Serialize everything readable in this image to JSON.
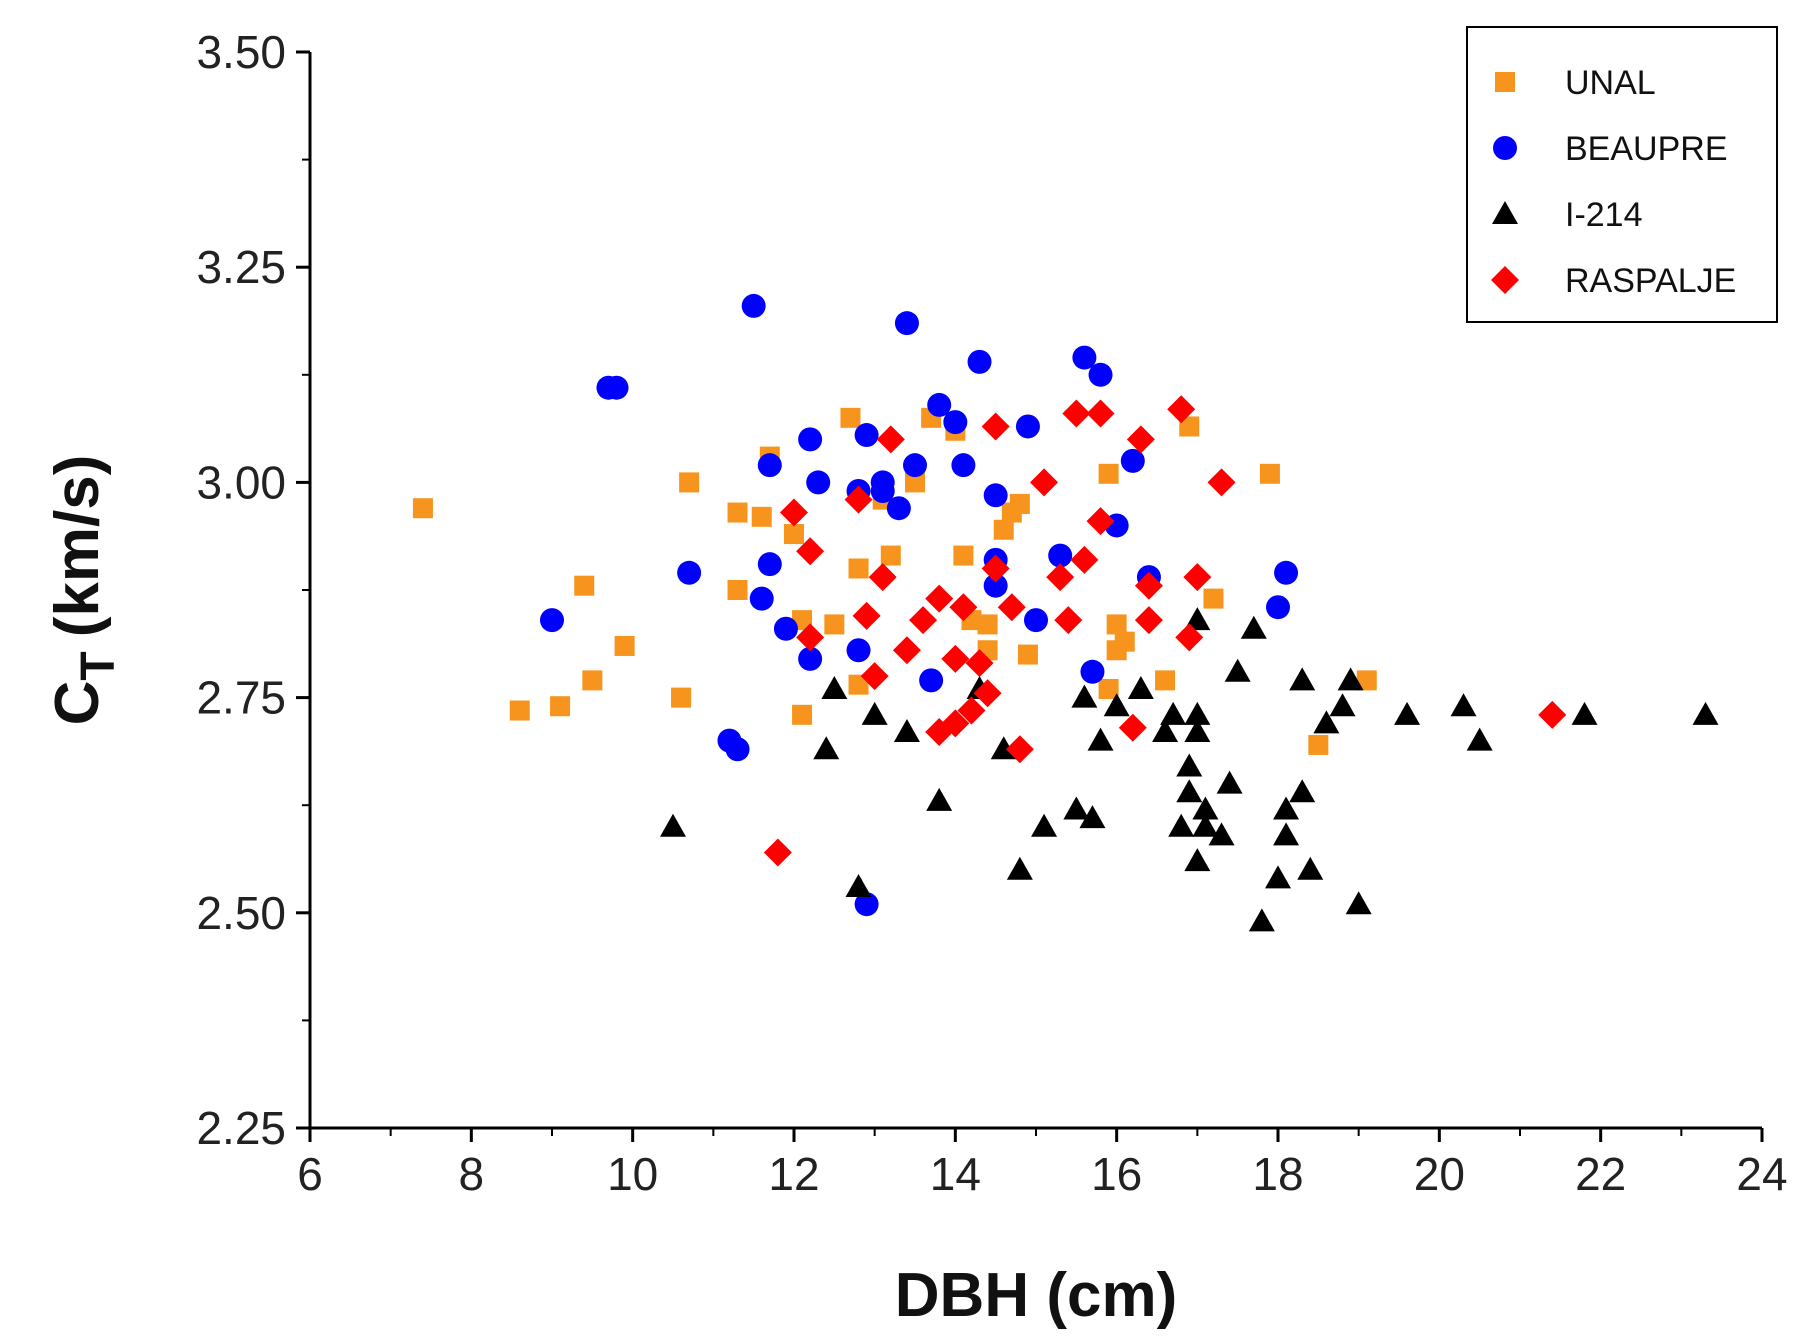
{
  "chart_data": {
    "type": "scatter",
    "title": "",
    "xlabel": "DBH (cm)",
    "ylabel_main": "C",
    "ylabel_sub": "T",
    "ylabel_unit": "(km/s)",
    "xlim": [
      6,
      24
    ],
    "ylim": [
      2.25,
      3.5
    ],
    "xticks": [
      6,
      8,
      10,
      12,
      14,
      16,
      18,
      20,
      22,
      24
    ],
    "xtick_labels": [
      "6",
      "8",
      "10",
      "12",
      "14",
      "16",
      "18",
      "20",
      "22",
      "24"
    ],
    "yticks": [
      2.25,
      2.5,
      2.75,
      3.0,
      3.25,
      3.5
    ],
    "ytick_labels": [
      "2.25",
      "2.50",
      "2.75",
      "3.00",
      "3.25",
      "3.50"
    ],
    "grid": false,
    "legend_position": "top-right",
    "series": [
      {
        "name": "UNAL",
        "marker": "square",
        "color": "#F7941D",
        "points": [
          [
            7.4,
            2.97
          ],
          [
            8.6,
            2.735
          ],
          [
            9.1,
            2.74
          ],
          [
            9.4,
            2.88
          ],
          [
            9.5,
            2.77
          ],
          [
            9.9,
            2.81
          ],
          [
            10.6,
            2.75
          ],
          [
            10.7,
            3.0
          ],
          [
            11.3,
            2.965
          ],
          [
            11.3,
            2.875
          ],
          [
            11.6,
            2.96
          ],
          [
            11.7,
            3.03
          ],
          [
            12.0,
            2.94
          ],
          [
            12.1,
            2.84
          ],
          [
            12.1,
            2.73
          ],
          [
            12.5,
            2.835
          ],
          [
            12.7,
            3.075
          ],
          [
            12.8,
            2.9
          ],
          [
            12.8,
            2.765
          ],
          [
            13.1,
            2.98
          ],
          [
            13.2,
            2.915
          ],
          [
            13.5,
            3.0
          ],
          [
            13.7,
            3.075
          ],
          [
            14.0,
            3.06
          ],
          [
            14.1,
            2.915
          ],
          [
            14.2,
            2.84
          ],
          [
            14.4,
            2.835
          ],
          [
            14.4,
            2.805
          ],
          [
            14.6,
            2.945
          ],
          [
            14.7,
            2.965
          ],
          [
            14.8,
            2.975
          ],
          [
            14.9,
            2.8
          ],
          [
            15.9,
            3.01
          ],
          [
            15.9,
            2.76
          ],
          [
            16.0,
            2.835
          ],
          [
            16.0,
            2.805
          ],
          [
            16.1,
            2.815
          ],
          [
            16.6,
            2.77
          ],
          [
            16.9,
            3.065
          ],
          [
            17.2,
            2.865
          ],
          [
            17.9,
            3.01
          ],
          [
            18.5,
            2.695
          ],
          [
            19.1,
            2.77
          ]
        ]
      },
      {
        "name": "BEAUPRE",
        "marker": "circle",
        "color": "#0000FF",
        "points": [
          [
            9.0,
            2.84
          ],
          [
            9.7,
            3.11
          ],
          [
            9.8,
            3.11
          ],
          [
            10.7,
            2.895
          ],
          [
            11.2,
            2.7
          ],
          [
            11.3,
            2.69
          ],
          [
            11.5,
            3.205
          ],
          [
            11.6,
            2.865
          ],
          [
            11.7,
            3.02
          ],
          [
            11.7,
            2.905
          ],
          [
            11.9,
            2.83
          ],
          [
            12.2,
            3.05
          ],
          [
            12.2,
            2.795
          ],
          [
            12.3,
            3.0
          ],
          [
            12.8,
            2.805
          ],
          [
            12.8,
            2.99
          ],
          [
            12.9,
            3.055
          ],
          [
            12.9,
            2.51
          ],
          [
            13.1,
            2.99
          ],
          [
            13.1,
            3.0
          ],
          [
            13.3,
            2.97
          ],
          [
            13.4,
            3.185
          ],
          [
            13.5,
            3.02
          ],
          [
            13.7,
            2.77
          ],
          [
            13.8,
            3.09
          ],
          [
            14.0,
            3.07
          ],
          [
            14.1,
            3.02
          ],
          [
            14.3,
            3.14
          ],
          [
            14.5,
            2.985
          ],
          [
            14.5,
            2.91
          ],
          [
            14.5,
            2.88
          ],
          [
            14.9,
            3.065
          ],
          [
            15.0,
            2.84
          ],
          [
            15.3,
            2.915
          ],
          [
            15.6,
            3.145
          ],
          [
            15.7,
            2.78
          ],
          [
            15.8,
            3.125
          ],
          [
            16.0,
            2.95
          ],
          [
            16.2,
            3.025
          ],
          [
            16.4,
            2.89
          ],
          [
            18.0,
            2.855
          ],
          [
            18.1,
            2.895
          ]
        ]
      },
      {
        "name": "I-214",
        "marker": "triangle",
        "color": "#000000",
        "points": [
          [
            10.5,
            2.6
          ],
          [
            12.4,
            2.69
          ],
          [
            12.5,
            2.76
          ],
          [
            12.8,
            2.53
          ],
          [
            13.0,
            2.73
          ],
          [
            13.4,
            2.71
          ],
          [
            13.8,
            2.63
          ],
          [
            14.3,
            2.76
          ],
          [
            14.6,
            2.69
          ],
          [
            14.8,
            2.55
          ],
          [
            15.1,
            2.6
          ],
          [
            15.5,
            2.62
          ],
          [
            15.6,
            2.75
          ],
          [
            15.7,
            2.61
          ],
          [
            15.8,
            2.7
          ],
          [
            16.0,
            2.74
          ],
          [
            16.3,
            2.76
          ],
          [
            16.6,
            2.71
          ],
          [
            16.7,
            2.73
          ],
          [
            16.8,
            2.6
          ],
          [
            16.9,
            2.64
          ],
          [
            16.9,
            2.67
          ],
          [
            17.0,
            2.84
          ],
          [
            17.0,
            2.73
          ],
          [
            17.0,
            2.56
          ],
          [
            17.0,
            2.71
          ],
          [
            17.1,
            2.62
          ],
          [
            17.1,
            2.6
          ],
          [
            17.3,
            2.59
          ],
          [
            17.4,
            2.65
          ],
          [
            17.5,
            2.78
          ],
          [
            17.7,
            2.83
          ],
          [
            17.8,
            2.49
          ],
          [
            18.0,
            2.54
          ],
          [
            18.1,
            2.62
          ],
          [
            18.1,
            2.59
          ],
          [
            18.3,
            2.77
          ],
          [
            18.3,
            2.64
          ],
          [
            18.4,
            2.55
          ],
          [
            18.6,
            2.72
          ],
          [
            18.8,
            2.74
          ],
          [
            18.9,
            2.77
          ],
          [
            19.0,
            2.51
          ],
          [
            19.6,
            2.73
          ],
          [
            20.3,
            2.74
          ],
          [
            20.5,
            2.7
          ],
          [
            21.8,
            2.73
          ],
          [
            23.3,
            2.73
          ]
        ]
      },
      {
        "name": "RASPALJE",
        "marker": "diamond",
        "color": "#FF0000",
        "points": [
          [
            11.8,
            2.57
          ],
          [
            12.0,
            2.965
          ],
          [
            12.2,
            2.92
          ],
          [
            12.2,
            2.82
          ],
          [
            12.8,
            2.98
          ],
          [
            12.9,
            2.845
          ],
          [
            13.0,
            2.775
          ],
          [
            13.1,
            2.89
          ],
          [
            13.2,
            3.05
          ],
          [
            13.4,
            2.805
          ],
          [
            13.6,
            2.84
          ],
          [
            13.8,
            2.865
          ],
          [
            13.8,
            2.71
          ],
          [
            14.0,
            2.795
          ],
          [
            14.0,
            2.72
          ],
          [
            14.1,
            2.855
          ],
          [
            14.2,
            2.735
          ],
          [
            14.3,
            2.79
          ],
          [
            14.4,
            2.755
          ],
          [
            14.5,
            2.9
          ],
          [
            14.5,
            3.065
          ],
          [
            14.7,
            2.855
          ],
          [
            14.8,
            2.69
          ],
          [
            15.1,
            3.0
          ],
          [
            15.3,
            2.89
          ],
          [
            15.4,
            2.84
          ],
          [
            15.5,
            3.08
          ],
          [
            15.6,
            2.91
          ],
          [
            15.8,
            3.08
          ],
          [
            15.8,
            2.955
          ],
          [
            16.2,
            2.715
          ],
          [
            16.3,
            3.05
          ],
          [
            16.4,
            2.88
          ],
          [
            16.4,
            2.84
          ],
          [
            16.8,
            3.085
          ],
          [
            16.9,
            2.82
          ],
          [
            17.0,
            2.89
          ],
          [
            17.3,
            3.0
          ],
          [
            21.4,
            2.73
          ]
        ]
      }
    ]
  }
}
